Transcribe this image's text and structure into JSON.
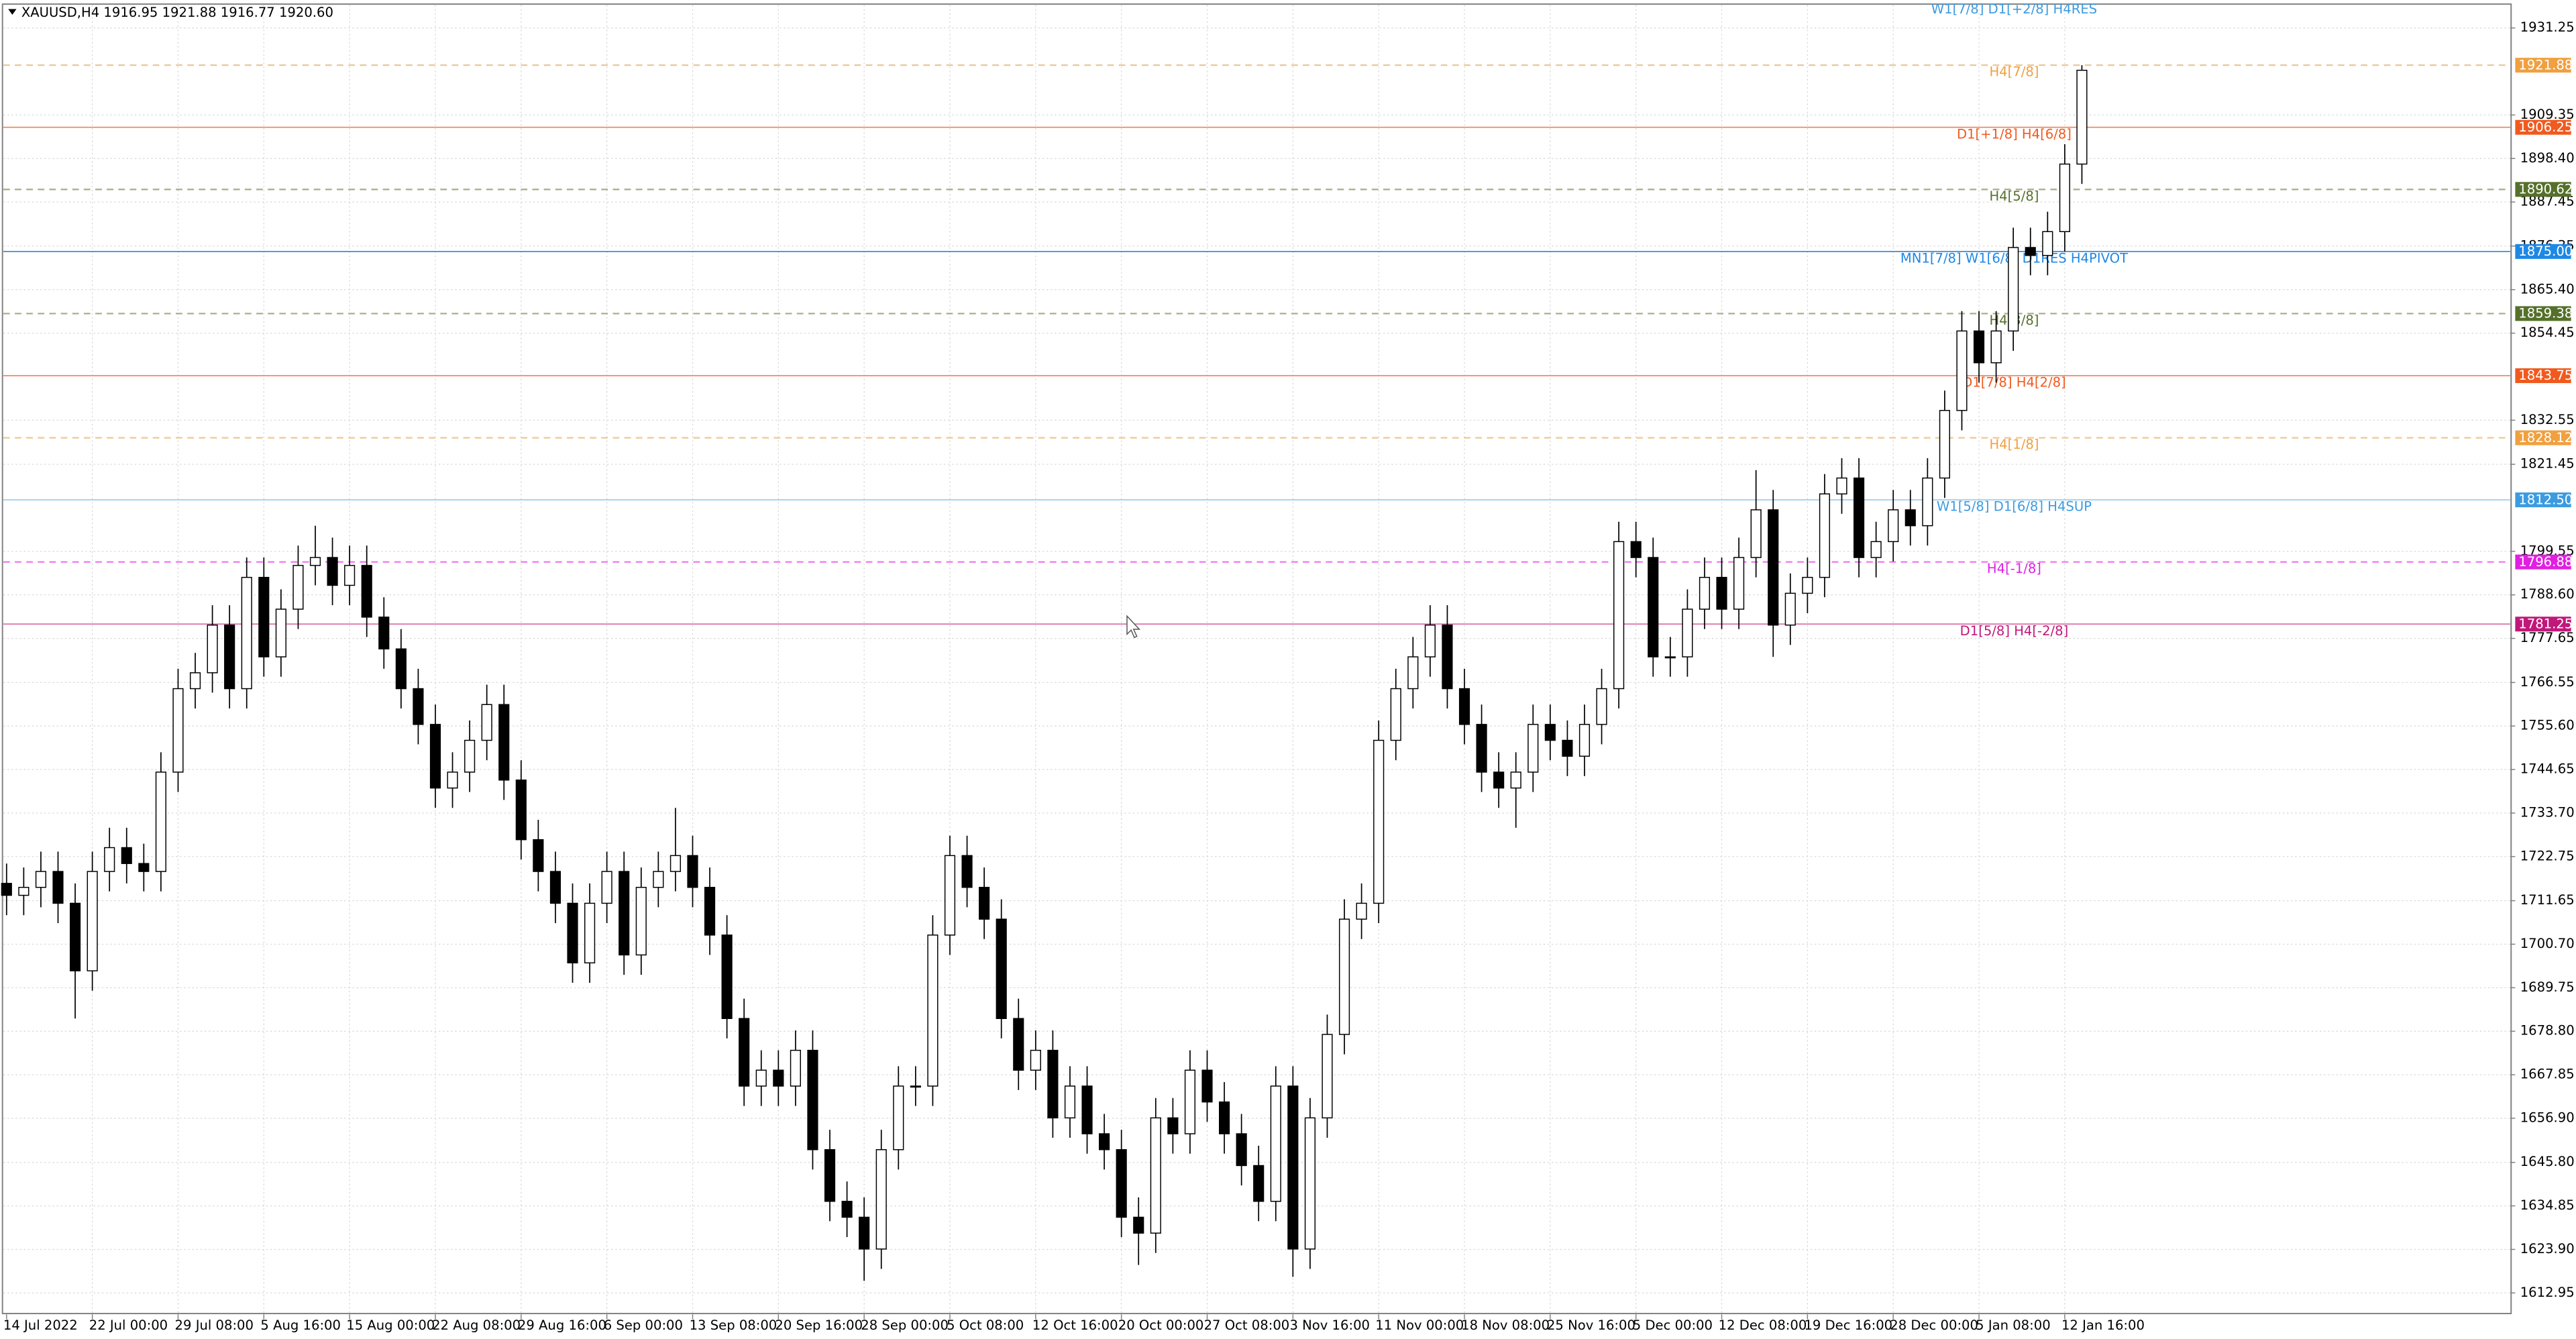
{
  "header": "XAUUSD,H4  1916.95 1921.88 1916.77 1920.60",
  "chart_data": {
    "type": "candlestick",
    "ylim": [
      1607.56,
      1937.04
    ],
    "yticks": [
      1931.25,
      1909.35,
      {
        "value": 1898.4,
        "label": "1898.40"
      },
      1887.45,
      1876.35,
      {
        "value": 1865.4,
        "label": "1865.40"
      },
      1854.45,
      1832.55,
      1821.45,
      1799.55,
      {
        "value": 1788.6,
        "label": "1788.60"
      },
      1777.65,
      1766.55,
      {
        "value": 1755.6,
        "label": "1755.60"
      },
      1744.65,
      {
        "value": 1733.7,
        "label": "1733.70"
      },
      1722.75,
      1711.65,
      {
        "value": 1700.7,
        "label": "1700.70"
      },
      1689.75,
      {
        "value": 1678.8,
        "label": "1678.80"
      },
      1667.85,
      {
        "value": 1656.9,
        "label": "1656.90"
      },
      {
        "value": 1645.8,
        "label": "1645.80"
      },
      1634.85,
      {
        "value": 1623.9,
        "label": "1623.90"
      },
      1612.95
    ],
    "xticks": [
      {
        "value": 0,
        "label": "14 Jul 2022"
      },
      {
        "value": 5,
        "label": "22 Jul 00:00"
      },
      {
        "value": 10,
        "label": "29 Jul 08:00"
      },
      {
        "value": 15,
        "label": "5 Aug 16:00"
      },
      {
        "value": 20,
        "label": "15 Aug 00:00"
      },
      {
        "value": 25,
        "label": "22 Aug 08:00"
      },
      {
        "value": 30,
        "label": "29 Aug 16:00"
      },
      {
        "value": 35,
        "label": "6 Sep 00:00"
      },
      {
        "value": 40,
        "label": "13 Sep 08:00"
      },
      {
        "value": 45,
        "label": "20 Sep 16:00"
      },
      {
        "value": 50,
        "label": "28 Sep 00:00"
      },
      {
        "value": 55,
        "label": "5 Oct 08:00"
      },
      {
        "value": 60,
        "label": "12 Oct 16:00"
      },
      {
        "value": 65,
        "label": "20 Oct 00:00"
      },
      {
        "value": 70,
        "label": "27 Oct 08:00"
      },
      {
        "value": 75,
        "label": "3 Nov 16:00"
      },
      {
        "value": 80,
        "label": "11 Nov 00:00"
      },
      {
        "value": 85,
        "label": "18 Nov 08:00"
      },
      {
        "value": 90,
        "label": "25 Nov 16:00"
      },
      {
        "value": 95,
        "label": "5 Dec 00:00"
      },
      {
        "value": 100,
        "label": "12 Dec 08:00"
      },
      {
        "value": 105,
        "label": "19 Dec 16:00"
      },
      {
        "value": 110,
        "label": "28 Dec 00:00"
      },
      {
        "value": 115,
        "label": "5 Jan 08:00"
      },
      {
        "value": 120,
        "label": "12 Jan 16:00"
      }
    ],
    "grid": true,
    "up_color": "#ffffff",
    "down_color": "#000000",
    "wick_color": "#000000",
    "open": [
      1716,
      1713,
      1715,
      1719,
      1711,
      1694,
      1719,
      1725,
      1721,
      1719,
      1744,
      1765,
      1769,
      1781,
      1765,
      1793,
      1773,
      1785,
      1796,
      1798,
      1791,
      1796,
      1783,
      1775,
      1765,
      1756,
      1740,
      1744,
      1752,
      1761,
      1742,
      1727,
      1719,
      1711,
      1696,
      1711,
      1719,
      1698,
      1715,
      1719,
      1723,
      1715,
      1703,
      1682,
      1665,
      1669,
      1665,
      1674,
      1649,
      1636,
      1632,
      1624,
      1649,
      1665,
      1665,
      1703,
      1723,
      1715,
      1707,
      1682,
      1669,
      1674,
      1657,
      1665,
      1653,
      1649,
      1632,
      1628,
      1657,
      1653,
      1669,
      1661,
      1653,
      1645,
      1636,
      1665,
      1624,
      1657,
      1678,
      1707,
      1711,
      1752,
      1765,
      1773,
      1781,
      1765,
      1756,
      1744,
      1740,
      1744,
      1756,
      1752,
      1748,
      1756,
      1765,
      1802,
      1798,
      1773,
      1773,
      1785,
      1793,
      1785,
      1798,
      1810,
      1781,
      1789,
      1793,
      1814,
      1818,
      1798,
      1802,
      1810,
      1806,
      1818,
      1835,
      1855,
      1847,
      1855,
      1876,
      1874,
      1880,
      1897
    ],
    "high": [
      1721,
      1720,
      1724,
      1724,
      1716,
      1724,
      1730,
      1730,
      1726,
      1749,
      1770,
      1774,
      1786,
      1786,
      1798,
      1798,
      1790,
      1801,
      1806,
      1803,
      1801,
      1801,
      1788,
      1780,
      1770,
      1761,
      1749,
      1757,
      1766,
      1766,
      1747,
      1732,
      1724,
      1716,
      1716,
      1724,
      1724,
      1720,
      1724,
      1735,
      1728,
      1720,
      1708,
      1687,
      1674,
      1674,
      1679,
      1679,
      1654,
      1641,
      1637,
      1654,
      1670,
      1670,
      1708,
      1728,
      1728,
      1720,
      1712,
      1687,
      1679,
      1679,
      1670,
      1670,
      1658,
      1654,
      1637,
      1662,
      1662,
      1674,
      1674,
      1666,
      1658,
      1650,
      1670,
      1670,
      1662,
      1683,
      1712,
      1716,
      1757,
      1770,
      1778,
      1786,
      1786,
      1770,
      1761,
      1749,
      1749,
      1761,
      1761,
      1757,
      1761,
      1770,
      1807,
      1807,
      1803,
      1778,
      1790,
      1798,
      1798,
      1803,
      1820,
      1815,
      1794,
      1798,
      1819,
      1823,
      1823,
      1807,
      1815,
      1815,
      1823,
      1840,
      1860,
      1860,
      1860,
      1881,
      1881,
      1885,
      1902,
      1921.88
    ],
    "low": [
      1708,
      1708,
      1710,
      1706,
      1682,
      1689,
      1714,
      1716,
      1714,
      1714,
      1739,
      1760,
      1764,
      1760,
      1760,
      1768,
      1768,
      1780,
      1791,
      1786,
      1786,
      1778,
      1770,
      1760,
      1751,
      1735,
      1735,
      1739,
      1747,
      1737,
      1722,
      1714,
      1706,
      1691,
      1691,
      1706,
      1693,
      1693,
      1710,
      1714,
      1710,
      1698,
      1677,
      1660,
      1660,
      1660,
      1660,
      1644,
      1631,
      1627,
      1616,
      1619,
      1644,
      1660,
      1660,
      1698,
      1710,
      1702,
      1677,
      1664,
      1664,
      1652,
      1652,
      1648,
      1644,
      1627,
      1620,
      1623,
      1648,
      1648,
      1656,
      1648,
      1640,
      1631,
      1631,
      1617,
      1619,
      1652,
      1673,
      1702,
      1706,
      1747,
      1760,
      1768,
      1760,
      1751,
      1739,
      1735,
      1730,
      1739,
      1747,
      1743,
      1743,
      1751,
      1760,
      1793,
      1768,
      1768,
      1768,
      1780,
      1780,
      1780,
      1793,
      1773,
      1776,
      1784,
      1788,
      1809,
      1793,
      1793,
      1797,
      1801,
      1801,
      1813,
      1830,
      1842,
      1842,
      1850,
      1869,
      1869,
      1875,
      1892
    ],
    "close": [
      1713,
      1715,
      1719,
      1711,
      1694,
      1719,
      1725,
      1721,
      1719,
      1744,
      1765,
      1769,
      1781,
      1765,
      1793,
      1773,
      1785,
      1796,
      1798,
      1791,
      1796,
      1783,
      1775,
      1765,
      1756,
      1740,
      1744,
      1752,
      1761,
      1742,
      1727,
      1719,
      1711,
      1696,
      1711,
      1719,
      1698,
      1715,
      1719,
      1723,
      1715,
      1703,
      1682,
      1665,
      1669,
      1665,
      1674,
      1649,
      1636,
      1632,
      1624,
      1649,
      1665,
      1665,
      1703,
      1723,
      1715,
      1707,
      1682,
      1669,
      1674,
      1657,
      1665,
      1653,
      1649,
      1632,
      1628,
      1657,
      1653,
      1669,
      1661,
      1653,
      1645,
      1636,
      1665,
      1624,
      1657,
      1678,
      1707,
      1711,
      1752,
      1765,
      1773,
      1781,
      1765,
      1756,
      1744,
      1740,
      1744,
      1756,
      1752,
      1748,
      1756,
      1765,
      1802,
      1798,
      1773,
      1773,
      1785,
      1793,
      1785,
      1798,
      1810,
      1781,
      1789,
      1793,
      1814,
      1818,
      1798,
      1802,
      1810,
      1806,
      1818,
      1835,
      1855,
      1847,
      1855,
      1876,
      1874,
      1880,
      1897,
      1920.6
    ],
    "top_annotation": {
      "text": "W1[7/8] D1[+2/8] H4RES",
      "color": "#3c9be0"
    },
    "levels": [
      {
        "value": 1921.88,
        "text": "H4[7/8]",
        "color": "#f0a040",
        "line_color": "#e8c89a",
        "dashed": true
      },
      {
        "value": 1906.25,
        "text": "D1[+1/8] H4[6/8]",
        "color": "#f05a1e",
        "line_color": "#f08a60",
        "dashed": false
      },
      {
        "value": 1890.62,
        "text": "H4[5/8]",
        "color": "#55702a",
        "line_color": "#a8a88a",
        "dashed": true
      },
      {
        "value": {
          "value": 1875,
          "label": "1875.00"
        },
        "text": "MN1[7/8] W1[6/8] D1RES H4PIVOT",
        "color": "#1e88e5",
        "line_color": "#3a8ee0",
        "dashed": false
      },
      {
        "value": 1859.38,
        "text": "H4[3/8]",
        "color": "#55702a",
        "line_color": "#a8a88a",
        "dashed": true
      },
      {
        "value": 1843.75,
        "text": "D1[7/8] H4[2/8]",
        "color": "#f05a1e",
        "line_color": "#f08a60",
        "dashed": false
      },
      {
        "value": 1828.12,
        "text": "H4[1/8]",
        "color": "#f0a040",
        "line_color": "#f0c890",
        "dashed": true
      },
      {
        "value": {
          "value": 1812.5,
          "label": "1812.50"
        },
        "text": "W1[5/8] D1[6/8] H4SUP",
        "color": "#3c9be0",
        "line_color": "#9acff0",
        "dashed": false
      },
      {
        "value": 1796.88,
        "text": "H4[-1/8]",
        "color": "#e020e0",
        "line_color": "#f070f0",
        "dashed": true
      },
      {
        "value": 1781.25,
        "text": "D1[5/8] H4[-2/8]",
        "color": "#c0187a",
        "line_color": "#d870a8",
        "dashed": false
      }
    ]
  }
}
